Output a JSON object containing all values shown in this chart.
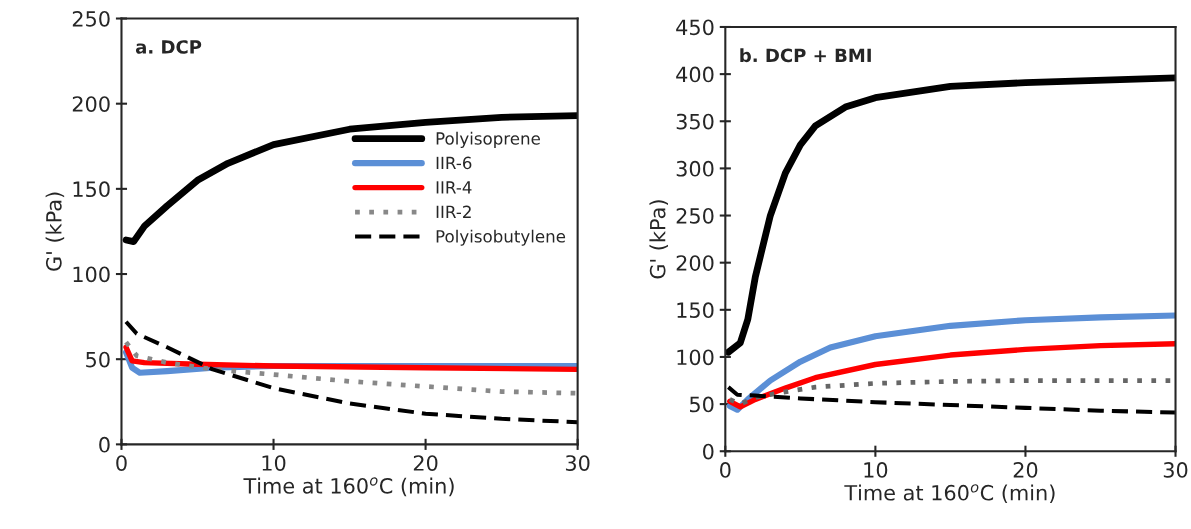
{
  "chart_data": [
    {
      "type": "line",
      "xlabel": "Time at 160$^{o}$C (min)",
      "ylabel": "G' (kPa)",
      "annotations": [
        "a. DCP"
      ],
      "xlim": [
        0,
        30
      ],
      "xticks": [
        0,
        10,
        20,
        30
      ],
      "ylim": [
        0,
        250
      ],
      "yticks": [
        0,
        50,
        100,
        150,
        200,
        250
      ],
      "grid": false,
      "legend": "right",
      "marker": "none",
      "series": [
        {
          "name": "Polyisoprene",
          "color": "#000000",
          "line_style": "solid",
          "x": [
            0.3,
            0.8,
            1.5,
            3,
            5,
            7,
            10,
            15,
            20,
            25,
            30
          ],
          "values": [
            120,
            119,
            128,
            140,
            155,
            165,
            176,
            185,
            189,
            192,
            193
          ]
        },
        {
          "name": "IIR-6",
          "color": "#5b8fd6",
          "line_style": "solid",
          "x": [
            0.3,
            0.7,
            1.2,
            3,
            6,
            10,
            20,
            30
          ],
          "values": [
            54,
            45,
            42,
            43,
            45,
            46,
            46,
            46
          ]
        },
        {
          "name": "IIR-4",
          "color": "#ff0000",
          "line_style": "solid",
          "x": [
            0.3,
            0.7,
            1.5,
            5,
            10,
            20,
            30
          ],
          "values": [
            57,
            49,
            48,
            47,
            46,
            45,
            44
          ]
        },
        {
          "name": "IIR-2",
          "color": "#888888",
          "line_style": "dotted",
          "x": [
            0.3,
            1,
            3,
            6,
            10,
            15,
            20,
            25,
            30
          ],
          "values": [
            60,
            52,
            48,
            44,
            41,
            37,
            34,
            31,
            30
          ]
        },
        {
          "name": "Polyisobutylene",
          "color": "#000000",
          "line_style": "dashed",
          "x": [
            0.3,
            1,
            3,
            6,
            10,
            15,
            20,
            25,
            30
          ],
          "values": [
            72,
            65,
            57,
            44,
            33,
            24,
            18,
            15,
            13
          ]
        }
      ]
    },
    {
      "type": "line",
      "xlabel": "Time at 160$^{o}$C (min)",
      "ylabel": "G' (kPa)",
      "annotations": [
        "b. DCP + BMI"
      ],
      "xlim": [
        0,
        30
      ],
      "xticks": [
        0,
        10,
        20,
        30
      ],
      "ylim": [
        0,
        450
      ],
      "yticks": [
        0,
        50,
        100,
        150,
        200,
        250,
        300,
        350,
        400,
        450
      ],
      "grid": false,
      "legend": false,
      "marker": "none",
      "series": [
        {
          "color": "#000000",
          "line_style": "solid",
          "x": [
            0.2,
            1,
            1.5,
            2,
            3,
            4,
            5,
            6,
            8,
            10,
            15,
            20,
            30
          ],
          "values": [
            105,
            115,
            140,
            185,
            250,
            295,
            325,
            345,
            365,
            375,
            387,
            391,
            396
          ]
        },
        {
          "color": "#5b8fd6",
          "line_style": "solid",
          "x": [
            0.3,
            0.8,
            1.5,
            3,
            5,
            7,
            10,
            15,
            20,
            25,
            30
          ],
          "values": [
            48,
            44,
            55,
            75,
            95,
            110,
            122,
            133,
            139,
            142,
            144
          ]
        },
        {
          "color": "#ff0000",
          "line_style": "solid",
          "x": [
            0.3,
            1,
            2,
            4,
            6,
            10,
            15,
            20,
            25,
            30
          ],
          "values": [
            53,
            47,
            55,
            67,
            78,
            92,
            102,
            108,
            112,
            114
          ]
        },
        {
          "color": "#666666",
          "line_style": "dotted",
          "x": [
            0.3,
            1,
            2,
            4,
            6,
            10,
            15,
            20,
            30
          ],
          "values": [
            55,
            50,
            57,
            63,
            68,
            72,
            74,
            75,
            75
          ]
        },
        {
          "color": "#000000",
          "line_style": "dashed",
          "x": [
            0.2,
            0.8,
            2,
            5,
            10,
            15,
            20,
            25,
            30
          ],
          "values": [
            68,
            60,
            59,
            56,
            52,
            49,
            46,
            43,
            41
          ]
        }
      ]
    }
  ]
}
